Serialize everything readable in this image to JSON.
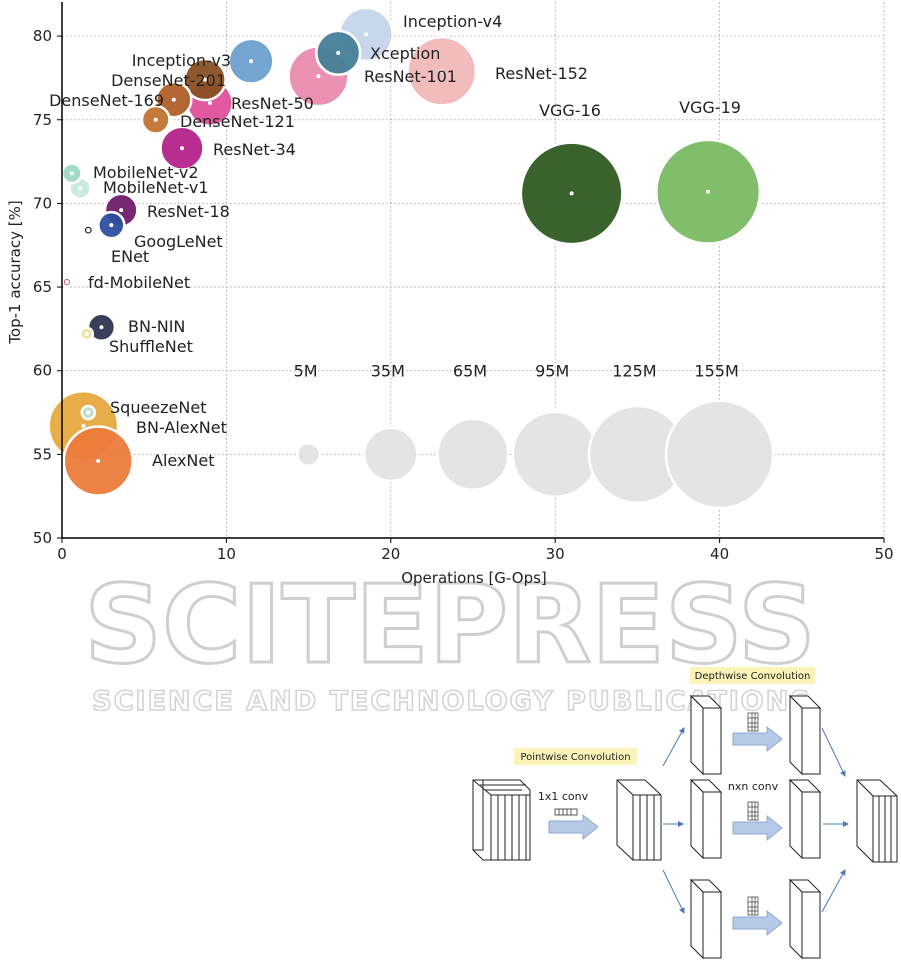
{
  "chart_data": {
    "type": "bubble",
    "title": "",
    "xlabel": "Operations [G-Ops]",
    "ylabel": "Top-1 accuracy [%]",
    "xlim": [
      0,
      50
    ],
    "ylim": [
      50,
      82
    ],
    "x_ticks": [
      0,
      10,
      20,
      30,
      40,
      50
    ],
    "y_ticks": [
      50,
      55,
      60,
      65,
      70,
      75,
      80
    ],
    "grid": true,
    "points": [
      {
        "name": "Inception-v4",
        "x": 18.5,
        "y": 80.1,
        "params_m": 35,
        "color": "#c5d5ea"
      },
      {
        "name": "Xception",
        "x": 16.8,
        "y": 79.0,
        "params_m": 23,
        "color": "#467f98"
      },
      {
        "name": "ResNet-101",
        "x": 15.6,
        "y": 77.6,
        "params_m": 45,
        "color": "#e98bb0"
      },
      {
        "name": "ResNet-152",
        "x": 23.1,
        "y": 77.9,
        "params_m": 60,
        "color": "#f1b8b8"
      },
      {
        "name": "Inception-v3",
        "x": 11.5,
        "y": 78.5,
        "params_m": 24,
        "color": "#6ea0cf"
      },
      {
        "name": "ResNet-50",
        "x": 9.0,
        "y": 76.0,
        "params_m": 25,
        "color": "#e0509a"
      },
      {
        "name": "DenseNet-201",
        "x": 8.7,
        "y": 77.4,
        "params_m": 20,
        "color": "#8a4f22"
      },
      {
        "name": "DenseNet-169",
        "x": 6.8,
        "y": 76.2,
        "params_m": 14,
        "color": "#b15f28"
      },
      {
        "name": "DenseNet-121",
        "x": 5.7,
        "y": 75.0,
        "params_m": 8,
        "color": "#c1732f"
      },
      {
        "name": "ResNet-34",
        "x": 7.3,
        "y": 73.3,
        "params_m": 22,
        "color": "#b3228a"
      },
      {
        "name": "VGG-16",
        "x": 31.0,
        "y": 70.6,
        "params_m": 138,
        "color": "#2f5a22"
      },
      {
        "name": "VGG-19",
        "x": 39.3,
        "y": 70.7,
        "params_m": 144,
        "color": "#79bb63"
      },
      {
        "name": "MobileNet-v2",
        "x": 0.6,
        "y": 71.8,
        "params_m": 3.5,
        "color": "#9fd9c4"
      },
      {
        "name": "MobileNet-v1",
        "x": 1.1,
        "y": 70.9,
        "params_m": 4.2,
        "color": "#c9e9db"
      },
      {
        "name": "ResNet-18",
        "x": 3.6,
        "y": 69.6,
        "params_m": 11.7,
        "color": "#6f1c6b"
      },
      {
        "name": "GoogLeNet",
        "x": 3.0,
        "y": 68.7,
        "params_m": 7,
        "color": "#2c4f9e"
      },
      {
        "name": "ENet",
        "x": 1.6,
        "y": 68.4,
        "params_m": 0.4,
        "color": "#1a1a1a"
      },
      {
        "name": "fd-MobileNet",
        "x": 0.3,
        "y": 65.3,
        "params_m": 0.3,
        "color": "#c43b3b"
      },
      {
        "name": "BN-NIN",
        "x": 2.4,
        "y": 62.6,
        "params_m": 7.6,
        "color": "#2c3550"
      },
      {
        "name": "ShuffleNet",
        "x": 1.5,
        "y": 62.2,
        "params_m": 1.0,
        "color": "#efe09c"
      },
      {
        "name": "SqueezeNet",
        "x": 1.6,
        "y": 57.5,
        "params_m": 1.2,
        "color": "#b9e0d2"
      },
      {
        "name": "BN-AlexNet",
        "x": 1.3,
        "y": 56.7,
        "params_m": 62,
        "color": "#e6a93f"
      },
      {
        "name": "AlexNet",
        "x": 2.2,
        "y": 54.6,
        "params_m": 61,
        "color": "#ec7b3c"
      }
    ],
    "size_legend": {
      "items": [
        {
          "label": "5M",
          "x": 15,
          "y": 55,
          "params_m": 5
        },
        {
          "label": "35M",
          "x": 20,
          "y": 55,
          "params_m": 35
        },
        {
          "label": "65M",
          "x": 25,
          "y": 55,
          "params_m": 65
        },
        {
          "label": "95M",
          "x": 30,
          "y": 55,
          "params_m": 95
        },
        {
          "label": "125M",
          "x": 35,
          "y": 55,
          "params_m": 125
        },
        {
          "label": "155M",
          "x": 40,
          "y": 55,
          "params_m": 155
        }
      ],
      "label_y": 60,
      "color": "#e4e4e4"
    }
  },
  "watermark": {
    "main": "SCITEPRESS",
    "sub": "SCIENCE AND TECHNOLOGY PUBLICATIONS"
  },
  "diagram": {
    "pointwise_title": "Pointwise Convolution",
    "depthwise_title": "Depthwise Convolution",
    "pointwise_op": "1x1 conv",
    "depthwise_op": "nxn conv",
    "banner_color": "#fbf3b7",
    "arrow_color": "#b6c9e6"
  }
}
